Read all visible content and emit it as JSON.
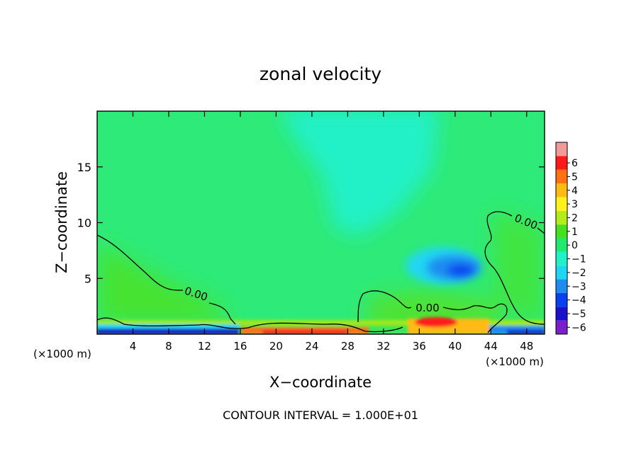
{
  "chart_data": {
    "type": "heatmap",
    "title": "zonal velocity",
    "xlabel": "X−coordinate",
    "ylabel": "Z−coordinate",
    "x_unit_left": "(×1000 m)",
    "x_unit_right": "(×1000 m)",
    "footer": "CONTOUR INTERVAL = 1.000E+01",
    "xlim": [
      0,
      50
    ],
    "ylim": [
      0,
      20
    ],
    "x_ticks": [
      4,
      8,
      12,
      16,
      20,
      24,
      28,
      32,
      36,
      40,
      44,
      48
    ],
    "x_tick_labels": [
      "4",
      "8",
      "12",
      "16",
      "20",
      "24",
      "28",
      "32",
      "36",
      "40",
      "44",
      "48"
    ],
    "y_ticks": [
      5,
      10,
      15
    ],
    "y_tick_labels": [
      "5",
      "10",
      "15"
    ],
    "colorbar": {
      "levels": [
        -6,
        -5,
        -4,
        -3,
        -2,
        -1,
        0,
        1,
        2,
        3,
        4,
        5,
        6
      ],
      "labels": [
        "−6",
        "−5",
        "−4",
        "−3",
        "−2",
        "−1",
        "0",
        "1",
        "2",
        "3",
        "4",
        "5",
        "6"
      ],
      "colors": [
        "#7a1fc9",
        "#1a12c8",
        "#0a40f0",
        "#1f8cf0",
        "#21d6f2",
        "#22f0c6",
        "#22e86e",
        "#46e01e",
        "#b4ec1a",
        "#fff21c",
        "#ffba14",
        "#ff7214",
        "#ff1a1a",
        "#f09a9a"
      ]
    },
    "contours": [
      {
        "value": 0,
        "label": "0.00"
      }
    ],
    "background_value": -0.5,
    "features": [
      {
        "name": "upper-core",
        "x": 28,
        "z": 15,
        "value": -1.3,
        "sx": 6,
        "sz": 5
      },
      {
        "name": "negative-core",
        "x": 40.5,
        "z": 5.3,
        "value": -3.5,
        "sx": 3.0,
        "sz": 1.3
      },
      {
        "name": "positive-lowlevel",
        "x": 6,
        "z": 3.5,
        "value": 0.3,
        "sx": 8,
        "sz": 3
      },
      {
        "name": "positive-surface",
        "x": 38.5,
        "z": 1.5,
        "value": 1.2,
        "sx": 4,
        "sz": 1.5
      },
      {
        "name": "positive-upper-right",
        "x": 47,
        "z": 8,
        "value": 0.2,
        "sx": 4,
        "sz": 4
      }
    ]
  }
}
